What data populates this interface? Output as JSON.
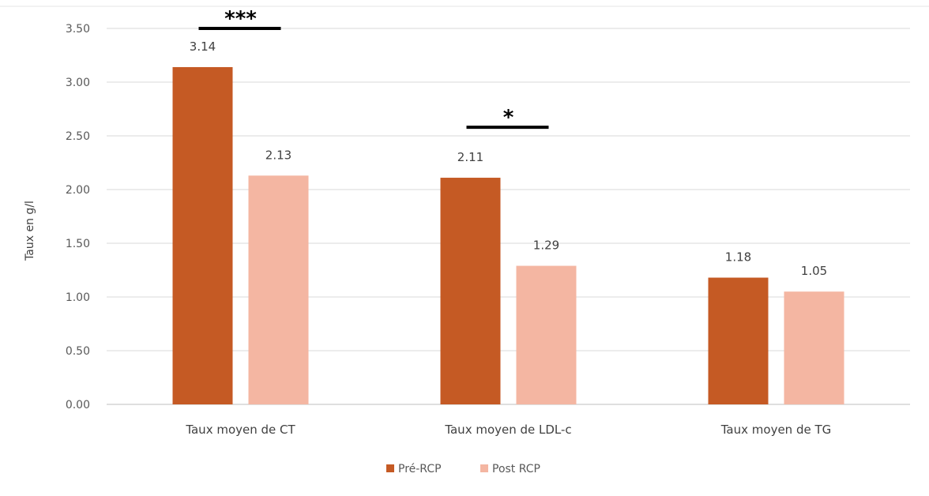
{
  "chart_data": {
    "type": "bar",
    "ylabel": "Taux en g/l",
    "ylim": [
      0,
      3.5
    ],
    "ytick_step": 0.5,
    "ytick_labels": [
      "0.00",
      "0.50",
      "1.00",
      "1.50",
      "2.00",
      "2.50",
      "3.00",
      "3.50"
    ],
    "grid": true,
    "legend_position": "bottom",
    "categories": [
      "Taux moyen de CT",
      "Taux moyen de LDL-c",
      "Taux moyen de TG"
    ],
    "series": [
      {
        "name": "Pré-RCP",
        "color": "#C55A24",
        "values": [
          3.14,
          2.11,
          1.18
        ],
        "labels": [
          "3.14",
          "2.11",
          "1.18"
        ]
      },
      {
        "name": "Post RCP",
        "color": "#F4B6A2",
        "values": [
          2.13,
          1.29,
          1.05
        ],
        "labels": [
          "2.13",
          "1.29",
          "1.05"
        ]
      }
    ],
    "annotations": [
      {
        "text": "***",
        "category_index": 0,
        "y": 3.5
      },
      {
        "text": "*",
        "category_index": 1,
        "y": 2.58
      }
    ]
  }
}
